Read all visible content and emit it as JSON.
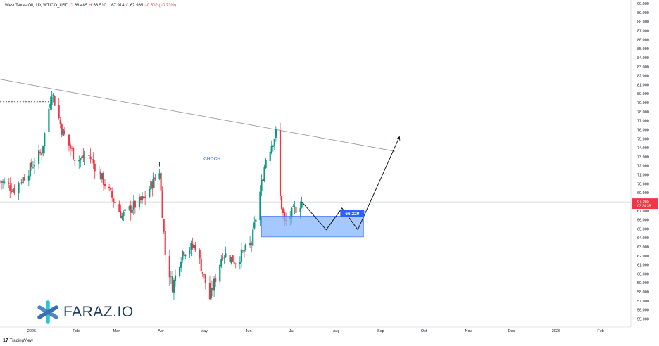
{
  "header": {
    "symbol_line": "West Texas Oil, 1D, WTICO_USD",
    "o_label": "O",
    "o_value": "68.485",
    "h_label": "H",
    "h_value": "68.510",
    "l_label": "L",
    "l_value": "67.914",
    "c_label": "C",
    "c_value": "67.985",
    "change": "−0.502 (−0.73%)"
  },
  "brand": {
    "name": "FARAZ.IO",
    "tradingview": "TradingView"
  },
  "colors": {
    "up": "#089981",
    "down": "#f23645",
    "zone": "#7fb2ff",
    "zone_border": "#2962ff",
    "tag": "#2962ff",
    "logo_blue": "#4f86c6",
    "logo_teal": "#26c6da"
  },
  "chart_data": {
    "type": "candlestick",
    "instrument": "West Texas Oil, 1D, WTICO_USD",
    "y_axis": {
      "ylim": [
        54.1,
        90.4
      ],
      "ticks": [
        "90.000",
        "89.000",
        "88.000",
        "87.000",
        "86.000",
        "85.000",
        "84.000",
        "83.000",
        "82.000",
        "81.000",
        "80.000",
        "79.000",
        "78.000",
        "77.000",
        "76.000",
        "75.000",
        "74.000",
        "73.000",
        "72.000",
        "71.000",
        "70.000",
        "69.000",
        "68.000",
        "67.000",
        "66.000",
        "65.000",
        "64.000",
        "63.000",
        "62.000",
        "61.000",
        "60.000",
        "59.000",
        "58.000",
        "57.000",
        "56.000",
        "55.000"
      ]
    },
    "x_axis": {
      "start": "2024-12-10",
      "end": "2026-02-22",
      "ticks": [
        {
          "date": "2025-01-01",
          "label": "2025"
        },
        {
          "date": "2025-02-01",
          "label": "Feb"
        },
        {
          "date": "2025-03-01",
          "label": "Mar"
        },
        {
          "date": "2025-04-01",
          "label": "Apr"
        },
        {
          "date": "2025-05-01",
          "label": "May"
        },
        {
          "date": "2025-06-01",
          "label": "Jun"
        },
        {
          "date": "2025-07-01",
          "label": "Jul"
        },
        {
          "date": "2025-08-01",
          "label": "Aug"
        },
        {
          "date": "2025-09-01",
          "label": "Sep"
        },
        {
          "date": "2025-10-01",
          "label": "Oct"
        },
        {
          "date": "2025-11-01",
          "label": "Nov"
        },
        {
          "date": "2025-12-01",
          "label": "Dec"
        },
        {
          "date": "2026-01-01",
          "label": "2026"
        },
        {
          "date": "2026-02-01",
          "label": "Feb"
        }
      ]
    },
    "path_points": [
      {
        "date": "2024-12-10",
        "close": 70.3
      },
      {
        "date": "2024-12-20",
        "close": 69.4
      },
      {
        "date": "2024-12-31",
        "close": 71.7
      },
      {
        "date": "2025-01-08",
        "close": 73.6
      },
      {
        "date": "2025-01-15",
        "close": 80.3
      },
      {
        "date": "2025-01-22",
        "close": 76.0
      },
      {
        "date": "2025-02-01",
        "close": 72.6
      },
      {
        "date": "2025-02-10",
        "close": 73.1
      },
      {
        "date": "2025-02-20",
        "close": 70.3
      },
      {
        "date": "2025-03-05",
        "close": 66.4
      },
      {
        "date": "2025-03-12",
        "close": 67.4
      },
      {
        "date": "2025-03-20",
        "close": 68.3
      },
      {
        "date": "2025-03-31",
        "close": 71.5
      },
      {
        "date": "2025-04-04",
        "close": 62.2
      },
      {
        "date": "2025-04-09",
        "close": 58.6
      },
      {
        "date": "2025-04-16",
        "close": 62.5
      },
      {
        "date": "2025-04-25",
        "close": 63.1
      },
      {
        "date": "2025-05-05",
        "close": 57.3
      },
      {
        "date": "2025-05-14",
        "close": 62.3
      },
      {
        "date": "2025-05-23",
        "close": 61.4
      },
      {
        "date": "2025-06-03",
        "close": 63.4
      },
      {
        "date": "2025-06-13",
        "close": 72.8
      },
      {
        "date": "2025-06-20",
        "close": 75.6
      },
      {
        "date": "2025-06-23",
        "close": 68.5
      },
      {
        "date": "2025-06-26",
        "close": 65.6
      },
      {
        "date": "2025-07-03",
        "close": 67.1
      },
      {
        "date": "2025-07-08",
        "close": 67.985
      }
    ],
    "trendline": {
      "from": {
        "date": "2024-12-10",
        "price": 81.6
      },
      "to": {
        "date": "2025-09-11",
        "price": 73.6
      }
    },
    "prior_high_marker": {
      "from": "2024-12-10",
      "to": "2025-01-13",
      "price": 79.1
    },
    "choch": {
      "label": "CHOCH",
      "from": "2025-03-31",
      "to": "2025-06-12",
      "price": 72.4
    },
    "demand_zone": {
      "from": "2025-06-10",
      "to": "2025-08-20",
      "top": 66.4,
      "bottom": 64.1
    },
    "demand_level": {
      "label": "66.220",
      "price": 66.22
    },
    "projection": [
      {
        "date": "2025-07-08",
        "price": 68.0
      },
      {
        "date": "2025-07-25",
        "price": 64.9
      },
      {
        "date": "2025-08-05",
        "price": 67.3
      },
      {
        "date": "2025-08-16",
        "price": 64.9
      },
      {
        "date": "2025-09-14",
        "price": 75.2
      }
    ],
    "last_price": {
      "label": "67.985",
      "countdown": "02:34:35",
      "price": 67.985
    }
  }
}
